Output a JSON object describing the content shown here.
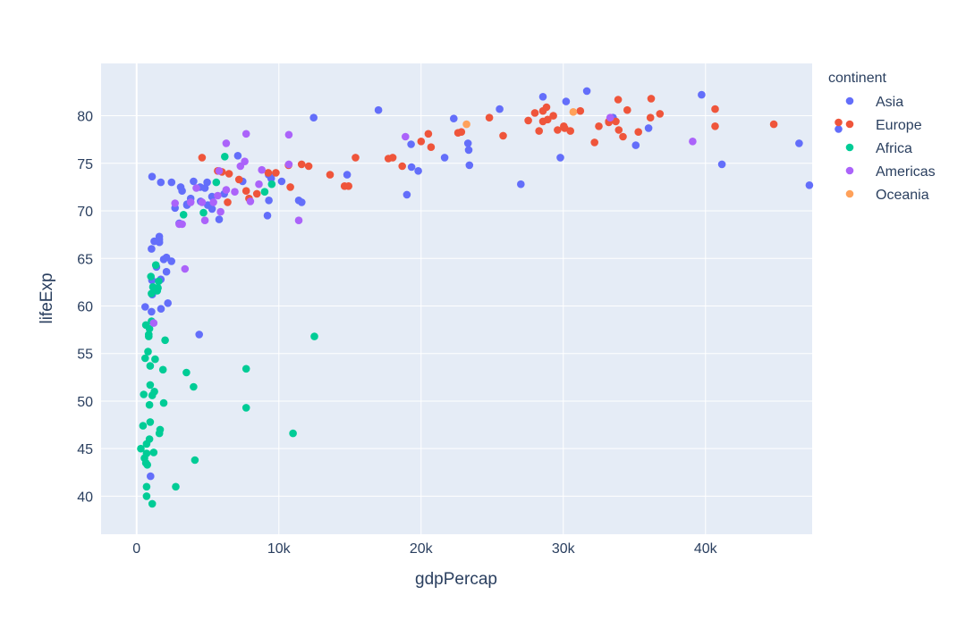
{
  "chart_data": {
    "type": "scatter",
    "title": "",
    "xlabel": "gdpPercap",
    "ylabel": "lifeExp",
    "xlim": [
      -2500,
      47500
    ],
    "ylim": [
      36,
      85.5
    ],
    "x_ticks": [
      0,
      10000,
      20000,
      30000,
      40000
    ],
    "x_tick_labels": [
      "0",
      "10k",
      "20k",
      "30k",
      "40k"
    ],
    "y_ticks": [
      40,
      45,
      50,
      55,
      60,
      65,
      70,
      75,
      80
    ],
    "y_tick_labels": [
      "40",
      "45",
      "50",
      "55",
      "60",
      "65",
      "70",
      "75",
      "80"
    ],
    "grid": true,
    "legend_title": "continent",
    "legend_position": "top-right",
    "colors": {
      "plot_background": "#e5ecf6",
      "gridline": "#ffffff",
      "text": "#2a3f5f"
    },
    "series": [
      {
        "name": "Asia",
        "color": "#636efa",
        "points": [
          [
            975,
            42.1
          ],
          [
            29796,
            75.6
          ],
          [
            1391,
            64.1
          ],
          [
            1714,
            59.7
          ],
          [
            4959,
            73.0
          ],
          [
            39725,
            82.2
          ],
          [
            2452,
            64.7
          ],
          [
            3540,
            70.6
          ],
          [
            3541,
            70.7
          ],
          [
            11606,
            70.9
          ],
          [
            25523,
            80.7
          ],
          [
            7458,
            73.1
          ],
          [
            31656,
            82.6
          ],
          [
            4471,
            72.5
          ],
          [
            1594,
            67.3
          ],
          [
            12452,
            79.8
          ],
          [
            6160,
            71.8
          ],
          [
            1241,
            66.8
          ],
          [
            3096,
            72.5
          ],
          [
            9286,
            73.8
          ],
          [
            46580,
            77.1
          ],
          [
            23349,
            76.4
          ],
          [
            1079,
            62.7
          ],
          [
            19329,
            74.6
          ],
          [
            5307,
            70.2
          ],
          [
            27013,
            72.8
          ],
          [
            7119,
            75.8
          ],
          [
            1902,
            64.9
          ],
          [
            14803,
            73.8
          ],
          [
            1045,
            59.4
          ],
          [
            47307,
            72.7
          ],
          [
            1086,
            73.6
          ],
          [
            41152,
            74.9
          ],
          [
            17003,
            80.6
          ],
          [
            4800,
            72.4
          ],
          [
            2458,
            73.0
          ],
          [
            49357,
            78.6
          ],
          [
            21655,
            75.6
          ],
          [
            9461,
            73.4
          ],
          [
            1592,
            67.0
          ],
          [
            5001,
            70.6
          ],
          [
            1284,
            61.8
          ],
          [
            11400,
            71.1
          ],
          [
            1046,
            66.0
          ],
          [
            28570,
            82.0
          ],
          [
            30200,
            81.5
          ],
          [
            22300,
            79.7
          ],
          [
            23300,
            77.1
          ],
          [
            23400,
            74.8
          ],
          [
            19800,
            74.2
          ],
          [
            19000,
            71.7
          ],
          [
            19300,
            77.0
          ],
          [
            33500,
            79.8
          ],
          [
            35100,
            76.9
          ],
          [
            36000,
            78.7
          ],
          [
            10200,
            73.1
          ],
          [
            9300,
            71.1
          ],
          [
            9200,
            69.5
          ],
          [
            4400,
            57.0
          ],
          [
            2200,
            60.3
          ],
          [
            1700,
            62.8
          ],
          [
            2100,
            63.6
          ],
          [
            2100,
            65.1
          ],
          [
            1600,
            66.7
          ],
          [
            1100,
            61.2
          ],
          [
            600,
            59.9
          ],
          [
            2700,
            70.3
          ],
          [
            3000,
            68.7
          ],
          [
            3200,
            72.1
          ],
          [
            3800,
            71.3
          ],
          [
            4000,
            73.1
          ],
          [
            4500,
            71.0
          ],
          [
            5300,
            71.5
          ],
          [
            5800,
            69.1
          ],
          [
            1700,
            73.0
          ]
        ]
      },
      {
        "name": "Europe",
        "color": "#ef553b",
        "points": [
          [
            36126,
            79.8
          ],
          [
            33693,
            79.4
          ],
          [
            10681,
            74.8
          ],
          [
            14619,
            72.6
          ],
          [
            22833,
            78.3
          ],
          [
            30032,
            78.9
          ],
          [
            35278,
            78.3
          ],
          [
            33207,
            79.3
          ],
          [
            40676,
            80.7
          ],
          [
            28570,
            79.4
          ],
          [
            27538,
            79.5
          ],
          [
            18009,
            75.6
          ],
          [
            36181,
            81.8
          ],
          [
            40676,
            78.9
          ],
          [
            28570,
            80.5
          ],
          [
            9254,
            74.0
          ],
          [
            36798,
            80.2
          ],
          [
            49357,
            79.3
          ],
          [
            15390,
            75.6
          ],
          [
            20510,
            78.1
          ],
          [
            10808,
            72.5
          ],
          [
            9787,
            74.0
          ],
          [
            18679,
            74.7
          ],
          [
            25768,
            77.9
          ],
          [
            28821,
            80.9
          ],
          [
            33860,
            81.7
          ],
          [
            8458,
            71.8
          ],
          [
            33203,
            79.4
          ],
          [
            4600,
            75.6
          ],
          [
            5700,
            74.2
          ],
          [
            6000,
            74.1
          ],
          [
            6500,
            73.9
          ],
          [
            6400,
            70.9
          ],
          [
            7200,
            73.3
          ],
          [
            7700,
            72.1
          ],
          [
            7900,
            71.3
          ],
          [
            11600,
            74.9
          ],
          [
            12100,
            74.7
          ],
          [
            13600,
            73.8
          ],
          [
            14900,
            72.6
          ],
          [
            17700,
            75.5
          ],
          [
            20000,
            77.3
          ],
          [
            20700,
            76.7
          ],
          [
            22600,
            78.2
          ],
          [
            24800,
            79.8
          ],
          [
            28000,
            80.3
          ],
          [
            28300,
            78.4
          ],
          [
            28900,
            79.6
          ],
          [
            29300,
            80.0
          ],
          [
            29600,
            78.5
          ],
          [
            30100,
            78.7
          ],
          [
            30500,
            78.4
          ],
          [
            31200,
            80.5
          ],
          [
            32200,
            77.2
          ],
          [
            32500,
            78.9
          ],
          [
            33900,
            78.5
          ],
          [
            34200,
            77.8
          ],
          [
            34500,
            80.6
          ],
          [
            44800,
            79.1
          ]
        ]
      },
      {
        "name": "Africa",
        "color": "#00cc96",
        "points": [
          [
            300,
            45.0
          ],
          [
            450,
            47.4
          ],
          [
            500,
            50.7
          ],
          [
            550,
            44.0
          ],
          [
            600,
            54.5
          ],
          [
            650,
            58.0
          ],
          [
            650,
            43.5
          ],
          [
            700,
            40.0
          ],
          [
            700,
            41.0
          ],
          [
            700,
            44.5
          ],
          [
            700,
            45.5
          ],
          [
            750,
            43.3
          ],
          [
            800,
            55.2
          ],
          [
            850,
            57.0
          ],
          [
            850,
            56.8
          ],
          [
            900,
            57.6
          ],
          [
            900,
            49.6
          ],
          [
            900,
            46.0
          ],
          [
            950,
            51.7
          ],
          [
            950,
            53.7
          ],
          [
            950,
            47.8
          ],
          [
            1000,
            63.1
          ],
          [
            1050,
            58.4
          ],
          [
            1050,
            61.3
          ],
          [
            1100,
            39.2
          ],
          [
            1100,
            50.6
          ],
          [
            1150,
            62.0
          ],
          [
            1200,
            44.6
          ],
          [
            1250,
            51.0
          ],
          [
            1300,
            54.4
          ],
          [
            1350,
            64.3
          ],
          [
            1450,
            61.6
          ],
          [
            1500,
            61.9
          ],
          [
            1550,
            62.6
          ],
          [
            1600,
            46.6
          ],
          [
            1650,
            47.0
          ],
          [
            1850,
            53.3
          ],
          [
            1900,
            49.8
          ],
          [
            2000,
            56.4
          ],
          [
            2750,
            41.0
          ],
          [
            3300,
            69.6
          ],
          [
            3500,
            53.0
          ],
          [
            4000,
            51.5
          ],
          [
            4100,
            43.8
          ],
          [
            4700,
            69.8
          ],
          [
            5600,
            73.0
          ],
          [
            6200,
            75.7
          ],
          [
            7700,
            53.4
          ],
          [
            7700,
            49.3
          ],
          [
            9000,
            72.0
          ],
          [
            9500,
            72.8
          ],
          [
            11000,
            46.6
          ],
          [
            12500,
            56.8
          ]
        ]
      },
      {
        "name": "Americas",
        "color": "#ab63fa",
        "points": [
          [
            1200,
            58.2
          ],
          [
            2700,
            70.8
          ],
          [
            3000,
            68.6
          ],
          [
            3200,
            68.6
          ],
          [
            3400,
            63.9
          ],
          [
            3800,
            70.9
          ],
          [
            4200,
            72.4
          ],
          [
            4600,
            70.9
          ],
          [
            4800,
            69.0
          ],
          [
            5400,
            70.9
          ],
          [
            5700,
            71.6
          ],
          [
            5800,
            74.2
          ],
          [
            5900,
            69.9
          ],
          [
            6300,
            77.1
          ],
          [
            6300,
            72.2
          ],
          [
            6900,
            72.0
          ],
          [
            7300,
            74.7
          ],
          [
            7600,
            75.2
          ],
          [
            7700,
            78.1
          ],
          [
            8000,
            71.0
          ],
          [
            8600,
            72.8
          ],
          [
            8800,
            74.3
          ],
          [
            10700,
            78.0
          ],
          [
            10700,
            74.9
          ],
          [
            11400,
            69.0
          ],
          [
            18900,
            77.8
          ],
          [
            33300,
            79.8
          ],
          [
            39100,
            77.3
          ]
        ]
      },
      {
        "name": "Oceania",
        "color": "#ffa15a",
        "points": [
          [
            23200,
            79.1
          ],
          [
            30700,
            80.4
          ]
        ]
      }
    ]
  }
}
